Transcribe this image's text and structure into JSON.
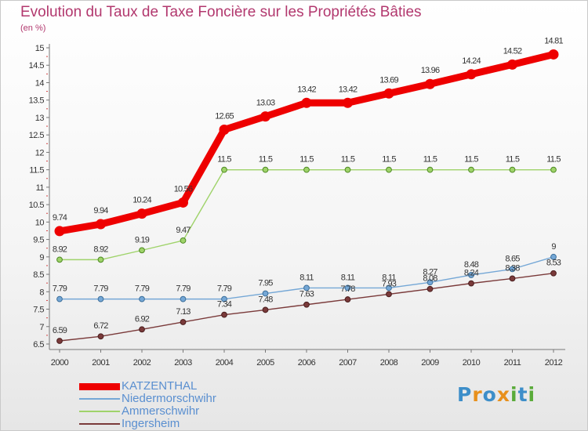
{
  "header": {
    "title": "Evolution du Taux de Taxe Foncière sur les Propriétés Bâties",
    "unit": "(en %)"
  },
  "logo": {
    "text": "Proxiti",
    "colors": [
      "#3d8ec9",
      "#e8901c",
      "#3d8ec9",
      "#e8901c",
      "#5aab3a",
      "#3d8ec9",
      "#5aab3a"
    ]
  },
  "chart_data": {
    "type": "line",
    "x": [
      "2000",
      "2001",
      "2002",
      "2003",
      "2004",
      "2005",
      "2006",
      "2007",
      "2008",
      "2009",
      "2010",
      "2011",
      "2012"
    ],
    "ylim": [
      6.5,
      15
    ],
    "yticks": [
      "6.5",
      "7",
      "7.5",
      "8",
      "8.5",
      "9",
      "9.5",
      "10",
      "10.5",
      "11",
      "11.5",
      "12",
      "12.5",
      "13",
      "13.5",
      "14",
      "14.5",
      "15"
    ],
    "grid": false,
    "legend": "bottom-left",
    "series": [
      {
        "name": "KATZENTHAL",
        "color": "#ee0000",
        "values": [
          9.74,
          9.94,
          10.24,
          10.56,
          12.65,
          13.03,
          13.42,
          13.42,
          13.69,
          13.96,
          14.24,
          14.52,
          14.81
        ],
        "labels": [
          "9.74",
          "9.94",
          "10.24",
          "10.56",
          "12.65",
          "13.03",
          "13.42",
          "13.42",
          "13.69",
          "13.96",
          "14.24",
          "14.52",
          "14.81"
        ]
      },
      {
        "name": "Niedermorschwihr",
        "color": "#74a7d6",
        "values": [
          7.79,
          7.79,
          7.79,
          7.79,
          7.79,
          7.95,
          8.11,
          8.11,
          8.11,
          8.27,
          8.48,
          8.65,
          9
        ],
        "labels": [
          "7.79",
          "7.79",
          "7.79",
          "7.79",
          "7.79",
          "7.95",
          "8.11",
          "8.11",
          "8.11",
          "8.27",
          "8.48",
          "8.65",
          "9"
        ]
      },
      {
        "name": "Ammerschwihr",
        "color": "#9fd36a",
        "values": [
          8.92,
          8.92,
          9.19,
          9.47,
          11.5,
          11.5,
          11.5,
          11.5,
          11.5,
          11.5,
          11.5,
          11.5,
          11.5
        ],
        "labels": [
          "8.92",
          "8.92",
          "9.19",
          "9.47",
          "11.5",
          "11.5",
          "11.5",
          "11.5",
          "11.5",
          "11.5",
          "11.5",
          "11.5",
          "11.5"
        ]
      },
      {
        "name": "Ingersheim",
        "color": "#7a3a3a",
        "values": [
          6.59,
          6.72,
          6.92,
          7.13,
          7.34,
          7.48,
          7.63,
          7.78,
          7.93,
          8.08,
          8.24,
          8.38,
          8.53
        ],
        "labels": [
          "6.59",
          "6.72",
          "6.92",
          "7.13",
          "7.34",
          "7.48",
          "7.63",
          "7.78",
          "7.93",
          "8.08",
          "8.24",
          "8.38",
          "8.53"
        ]
      }
    ]
  }
}
